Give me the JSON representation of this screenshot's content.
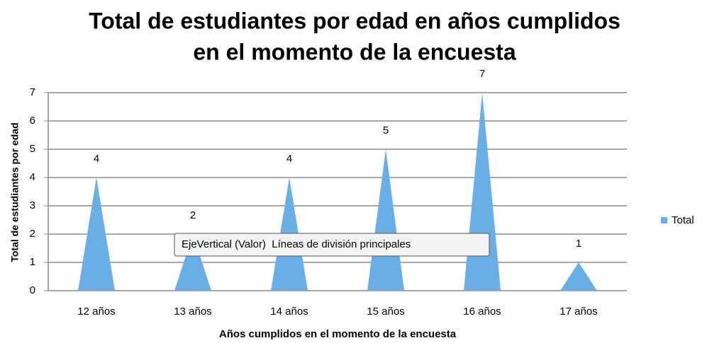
{
  "chart_data": {
    "type": "bar",
    "title": [
      "Total de estudiantes por edad en años cumplidos",
      "en el momento de la encuesta"
    ],
    "x_label": "Años cumplidos en el momento de la encuesta",
    "y_label": "Total de estudiantes por edad",
    "categories": [
      "12 años",
      "13 años",
      "14 años",
      "15 años",
      "16 años",
      "17 años"
    ],
    "series": [
      {
        "name": "Total",
        "color": "#6aaee8",
        "values": [
          4,
          2,
          4,
          5,
          7,
          1
        ]
      }
    ],
    "ylim": [
      0,
      7
    ],
    "yticks": [
      0,
      1,
      2,
      3,
      4,
      5,
      6,
      7
    ],
    "grid": true,
    "legend": "right",
    "tooltip": "EjeVertical (Valor)  Líneas de división principales"
  }
}
